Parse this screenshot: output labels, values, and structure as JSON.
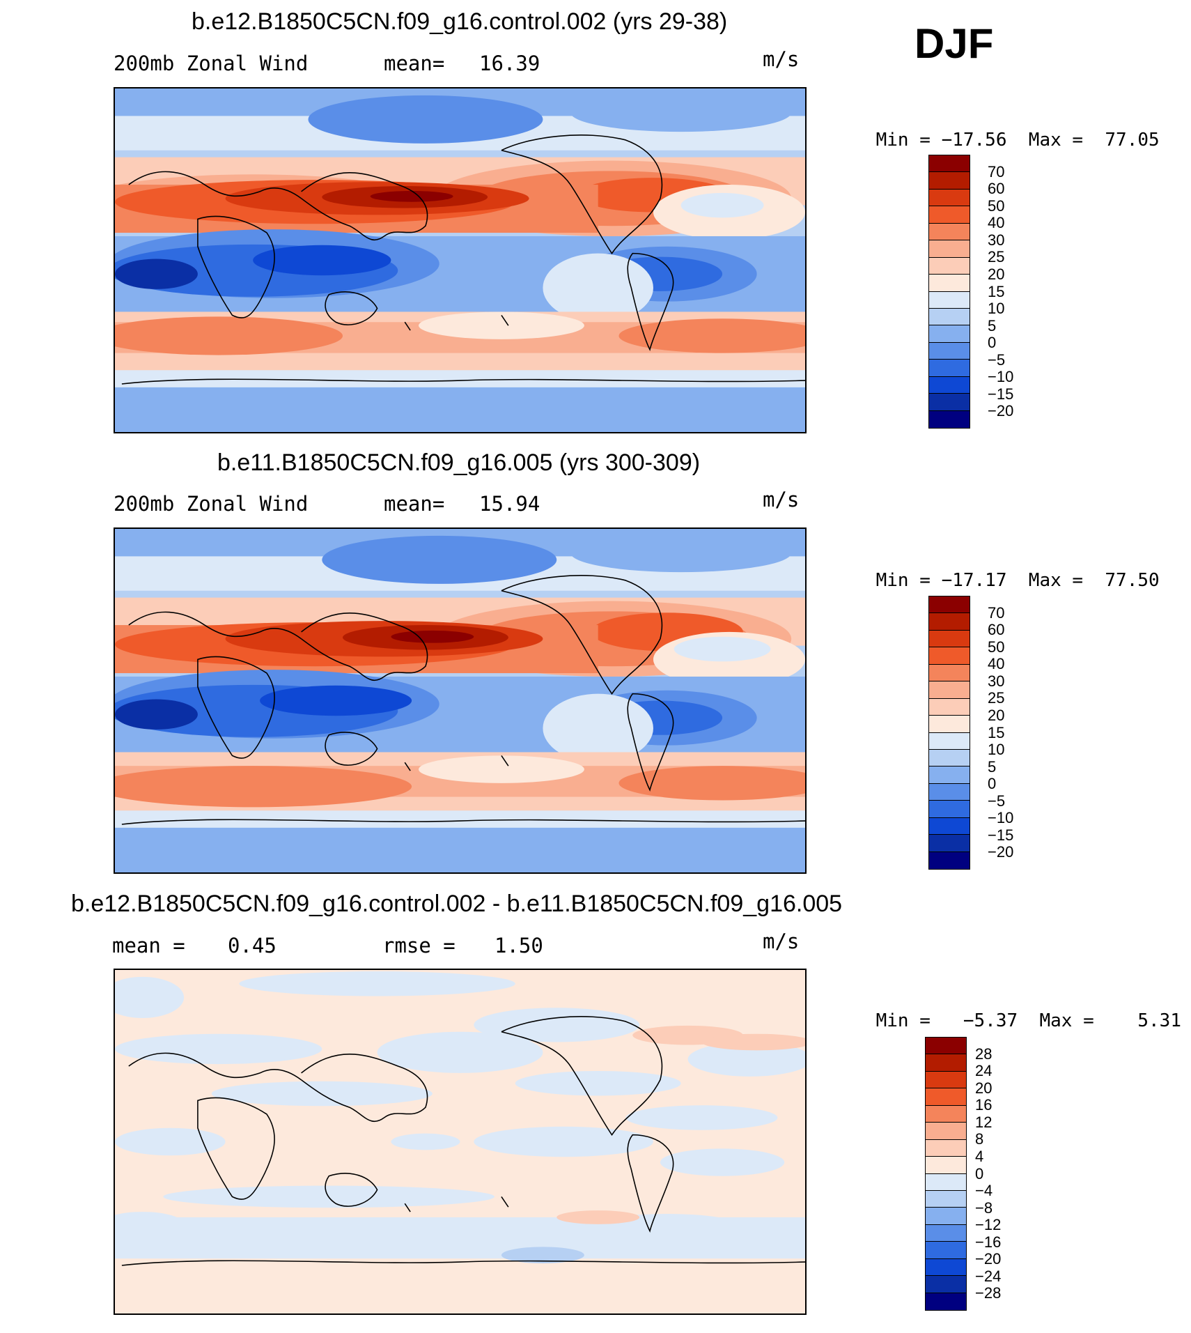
{
  "season": "DJF",
  "panels": [
    {
      "title": "b.e12.B1850C5CN.f09_g16.control.002 (yrs 29-38)",
      "left_label": "200mb Zonal Wind",
      "stat_label": "mean=",
      "stat_value": "16.39",
      "units": "m/s",
      "min_label": "Min =",
      "min_value": "−17.56",
      "max_label": "Max =",
      "max_value": "77.05",
      "colorbar": {
        "labels": [
          "70",
          "60",
          "50",
          "40",
          "30",
          "25",
          "20",
          "15",
          "10",
          "5",
          "0",
          "−5",
          "−10",
          "−15",
          "−20"
        ],
        "colors": [
          "#8b0000",
          "#b31c00",
          "#d93a10",
          "#ef5a2a",
          "#f4845b",
          "#f9ae90",
          "#fccdb8",
          "#fde9dc",
          "#dce9f8",
          "#b6d0f3",
          "#86b0ef",
          "#5a8ee8",
          "#2f6be0",
          "#0e48d4",
          "#0a2fa5",
          "#000080"
        ]
      }
    },
    {
      "title": "b.e11.B1850C5CN.f09_g16.005 (yrs 300-309)",
      "left_label": "200mb Zonal Wind",
      "stat_label": "mean=",
      "stat_value": "15.94",
      "units": "m/s",
      "min_label": "Min =",
      "min_value": "−17.17",
      "max_label": "Max =",
      "max_value": "77.50",
      "colorbar": {
        "labels": [
          "70",
          "60",
          "50",
          "40",
          "30",
          "25",
          "20",
          "15",
          "10",
          "5",
          "0",
          "−5",
          "−10",
          "−15",
          "−20"
        ],
        "colors": [
          "#8b0000",
          "#b31c00",
          "#d93a10",
          "#ef5a2a",
          "#f4845b",
          "#f9ae90",
          "#fccdb8",
          "#fde9dc",
          "#dce9f8",
          "#b6d0f3",
          "#86b0ef",
          "#5a8ee8",
          "#2f6be0",
          "#0e48d4",
          "#0a2fa5",
          "#000080"
        ]
      }
    },
    {
      "title": "b.e12.B1850C5CN.f09_g16.control.002 - b.e11.B1850C5CN.f09_g16.005",
      "left_label": "mean =",
      "left_value": "0.45",
      "stat_label": "rmse =",
      "stat_value": "1.50",
      "units": "m/s",
      "min_label": "Min =",
      "min_value": "−5.37",
      "max_label": "Max =",
      "max_value": "5.31",
      "colorbar": {
        "labels": [
          "28",
          "24",
          "20",
          "16",
          "12",
          "8",
          "4",
          "0",
          "−4",
          "−8",
          "−12",
          "−16",
          "−20",
          "−24",
          "−28"
        ],
        "colors": [
          "#8b0000",
          "#b31c00",
          "#d93a10",
          "#ef5a2a",
          "#f4845b",
          "#f9ae90",
          "#fccdb8",
          "#fde9dc",
          "#dce9f8",
          "#b6d0f3",
          "#86b0ef",
          "#5a8ee8",
          "#2f6be0",
          "#0e48d4",
          "#0a2fa5",
          "#000080"
        ]
      }
    }
  ]
}
